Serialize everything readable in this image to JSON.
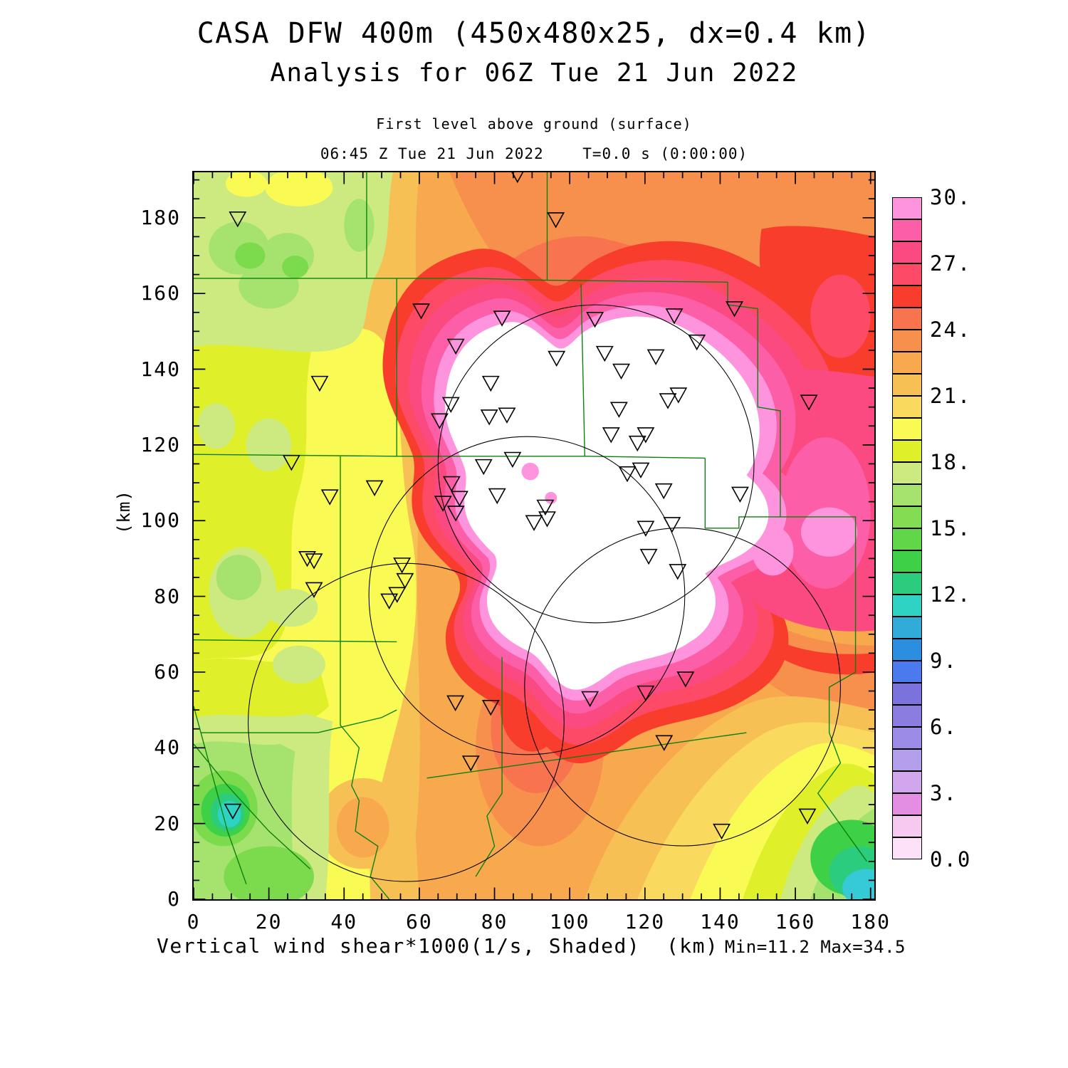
{
  "titles": {
    "line1": "CASA DFW 400m (450x480x25, dx=0.4 km)",
    "line2": "Analysis for 06Z Tue 21 Jun 2022",
    "sub1": "First level above ground (surface)",
    "sub2": "06:45 Z Tue 21 Jun 2022    T=0.0 s (0:00:00)"
  },
  "footer": {
    "left": "Vertical wind shear*1000(1/s, Shaded)  (km)",
    "right": "Min=11.2 Max=34.5"
  },
  "chart_data": {
    "type": "heatmap",
    "title": "CASA DFW 400m (450x480x25, dx=0.4 km)",
    "subtitle": "Analysis for 06Z Tue 21 Jun 2022",
    "level_label": "First level above ground (surface)",
    "time_label": "06:45 Z Tue 21 Jun 2022    T=0.0 s (0:00:00)",
    "field_label": "Vertical wind shear*1000(1/s, Shaded)",
    "units": "km",
    "min": 11.2,
    "max": 34.5,
    "x_axis": {
      "label": "(km)",
      "range": [
        0,
        181
      ],
      "major_ticks": [
        0,
        20,
        40,
        60,
        80,
        100,
        120,
        140,
        160,
        180
      ],
      "minor_step": 5
    },
    "y_axis": {
      "label": "(km)",
      "range": [
        0,
        192
      ],
      "major_ticks": [
        0,
        20,
        40,
        60,
        80,
        100,
        120,
        140,
        160,
        180
      ],
      "minor_step": 5
    },
    "colorbar": {
      "min": 0,
      "max": 30,
      "segment_step": 1,
      "labels": [
        "30.",
        "27.",
        "24.",
        "21.",
        "18.",
        "15.",
        "12.",
        "9.",
        "6.",
        "3.",
        "0.0"
      ],
      "label_values": [
        30,
        27,
        24,
        21,
        18,
        15,
        12,
        9,
        6,
        3,
        0
      ],
      "colors_top_to_bottom": [
        "#FF94DE",
        "#FC5FA8",
        "#FB4A82",
        "#FC4A67",
        "#F93D2D",
        "#F7744F",
        "#F7904C",
        "#F8A94E",
        "#F7C055",
        "#FAD95F",
        "#FAFA55",
        "#DFF02B",
        "#CDEA80",
        "#A5E36E",
        "#84DC52",
        "#62D649",
        "#3ED147",
        "#2BCC7E",
        "#2ED3C4",
        "#31ABD8",
        "#2B8EDE",
        "#4A7AEE",
        "#7B72DC",
        "#8B7CE0",
        "#9D8BE8",
        "#B49FEC",
        "#D2A6EC",
        "#E38DE3",
        "#F6C9F0",
        "#FCE1F8"
      ]
    },
    "radar_circles_km": [
      {
        "x": 107.0,
        "y": 115.0,
        "r": 42
      },
      {
        "x": 88.6,
        "y": 80.2,
        "r": 42
      },
      {
        "x": 56.5,
        "y": 46.7,
        "r": 42
      },
      {
        "x": 130.0,
        "y": 56.1,
        "r": 42
      }
    ],
    "station_markers_km": [
      [
        11.7,
        179.8
      ],
      [
        86.1,
        191.5
      ],
      [
        96.3,
        179.6
      ],
      [
        60.5,
        155.5
      ],
      [
        82,
        153.6
      ],
      [
        106.7,
        153.3
      ],
      [
        127.8,
        154.2
      ],
      [
        143.8,
        156.1
      ],
      [
        69.7,
        146.2
      ],
      [
        33.5,
        136.4
      ],
      [
        96.5,
        143
      ],
      [
        109.3,
        144.3
      ],
      [
        122.9,
        143.4
      ],
      [
        133.8,
        147.3
      ],
      [
        79,
        136.4
      ],
      [
        113.7,
        139.6
      ],
      [
        68.4,
        130.8
      ],
      [
        65.4,
        126.5
      ],
      [
        78.6,
        127.5
      ],
      [
        83.3,
        128
      ],
      [
        128.9,
        133.3
      ],
      [
        126.1,
        131.8
      ],
      [
        113.1,
        129.5
      ],
      [
        111,
        122.8
      ],
      [
        118,
        120.6
      ],
      [
        120.2,
        122.8
      ],
      [
        26,
        115.5
      ],
      [
        48.1,
        108.8
      ],
      [
        36.2,
        106.4
      ],
      [
        68.6,
        109.9
      ],
      [
        70.7,
        106
      ],
      [
        66.3,
        104.7
      ],
      [
        69.7,
        102.1
      ],
      [
        80.7,
        106.7
      ],
      [
        93.5,
        103.7
      ],
      [
        94,
        100.6
      ],
      [
        90.5,
        99.6
      ],
      [
        115.3,
        112.5
      ],
      [
        118.9,
        113.5
      ],
      [
        125,
        108
      ],
      [
        120.2,
        98.1
      ],
      [
        127.2,
        99.1
      ],
      [
        121,
        90.7
      ],
      [
        128.7,
        86.7
      ],
      [
        145.3,
        107.1
      ],
      [
        30.2,
        90.1
      ],
      [
        32,
        89.5
      ],
      [
        55.4,
        88.4
      ],
      [
        56.2,
        84.3
      ],
      [
        54.1,
        80.6
      ],
      [
        52,
        78.9
      ],
      [
        32,
        81.9
      ],
      [
        69.6,
        52
      ],
      [
        79,
        50.8
      ],
      [
        105.4,
        53.1
      ],
      [
        120.2,
        54.6
      ],
      [
        130.8,
        58.3
      ],
      [
        125.1,
        41.5
      ],
      [
        73.7,
        36.1
      ],
      [
        140.4,
        18.1
      ],
      [
        10.4,
        23.4
      ],
      [
        163.2,
        22.1
      ],
      [
        77.1,
        114.4
      ],
      [
        84.8,
        116.3
      ],
      [
        163.6,
        131.4
      ]
    ],
    "county_lines_km": [
      [
        [
          0,
          164
        ],
        [
          74,
          164
        ],
        [
          94,
          163.5
        ],
        [
          142,
          163
        ]
      ],
      [
        [
          46,
          192
        ],
        [
          46,
          164
        ]
      ],
      [
        [
          94,
          192
        ],
        [
          94,
          163.5
        ]
      ],
      [
        [
          142,
          163
        ],
        [
          142,
          157
        ],
        [
          150,
          156
        ],
        [
          150,
          130
        ],
        [
          156,
          129
        ],
        [
          156,
          101
        ]
      ],
      [
        [
          103,
          162.5
        ],
        [
          104,
          117
        ]
      ],
      [
        [
          0,
          117.5
        ],
        [
          54,
          117
        ],
        [
          105,
          117
        ],
        [
          136,
          116.5
        ]
      ],
      [
        [
          54,
          164
        ],
        [
          54,
          117
        ]
      ],
      [
        [
          136,
          116.5
        ],
        [
          136,
          98
        ],
        [
          145,
          98
        ],
        [
          145,
          101
        ],
        [
          176,
          101
        ],
        [
          176,
          60
        ],
        [
          169,
          56
        ],
        [
          169,
          44
        ],
        [
          172,
          36
        ],
        [
          166,
          28
        ],
        [
          179,
          10
        ]
      ],
      [
        [
          39,
          117
        ],
        [
          39,
          46
        ],
        [
          44,
          40
        ],
        [
          42,
          30
        ],
        [
          44,
          26
        ],
        [
          43,
          18
        ],
        [
          49,
          14
        ],
        [
          47,
          6
        ],
        [
          52,
          0
        ]
      ],
      [
        [
          0,
          68.5
        ],
        [
          54,
          68
        ]
      ],
      [
        [
          2,
          44
        ],
        [
          33,
          44
        ],
        [
          50,
          48
        ],
        [
          54,
          50
        ]
      ],
      [
        [
          0,
          41
        ],
        [
          9,
          30
        ],
        [
          20,
          18
        ],
        [
          31,
          8
        ]
      ],
      [
        [
          0,
          51
        ],
        [
          9,
          18
        ],
        [
          14,
          4
        ]
      ],
      [
        [
          62,
          32
        ],
        [
          147,
          44
        ]
      ],
      [
        [
          82,
          64
        ],
        [
          82,
          28
        ],
        [
          78,
          22
        ],
        [
          80,
          14
        ],
        [
          75,
          6
        ]
      ]
    ]
  }
}
